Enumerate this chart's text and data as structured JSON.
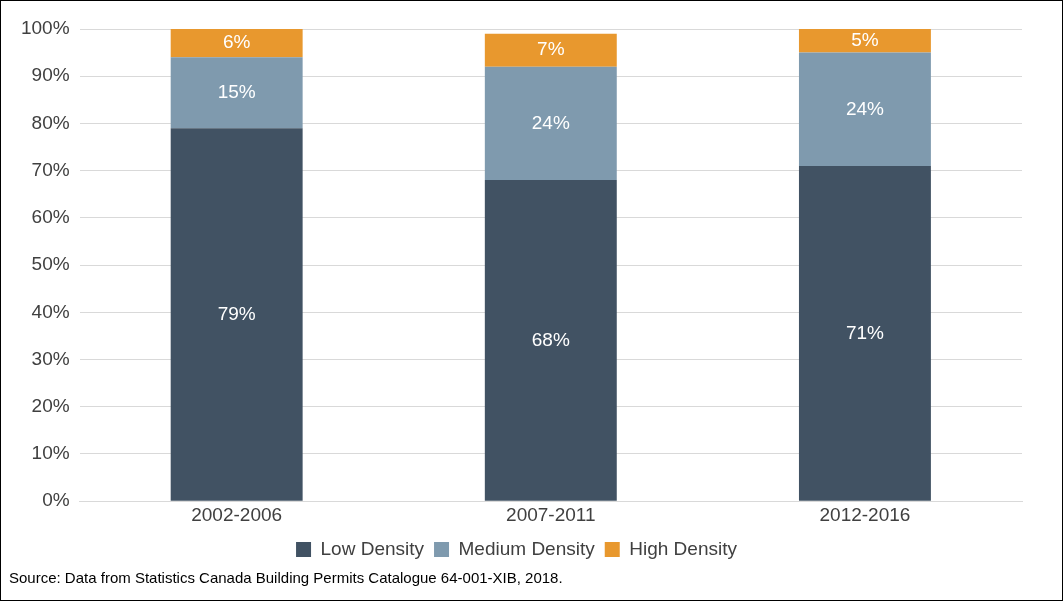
{
  "chart_data": {
    "type": "bar",
    "stacked": true,
    "categories": [
      "2002-2006",
      "2007-2011",
      "2012-2016"
    ],
    "series": [
      {
        "name": "Low Density",
        "color": "#415263",
        "values": [
          79,
          68,
          71
        ],
        "value_labels": [
          "79%",
          "68%",
          "71%"
        ]
      },
      {
        "name": "Medium Density",
        "color": "#7f9aae",
        "values": [
          15,
          24,
          24
        ],
        "value_labels": [
          "15%",
          "24%",
          "24%"
        ]
      },
      {
        "name": "High Density",
        "color": "#e8982e",
        "values": [
          6,
          7,
          5
        ],
        "value_labels": [
          "6%",
          "7%",
          "5%"
        ]
      }
    ],
    "ylim": [
      0,
      100
    ],
    "yticks": [
      {
        "value": 0,
        "label": "0%"
      },
      {
        "value": 10,
        "label": "10%"
      },
      {
        "value": 20,
        "label": "20%"
      },
      {
        "value": 30,
        "label": "30%"
      },
      {
        "value": 40,
        "label": "40%"
      },
      {
        "value": 50,
        "label": "50%"
      },
      {
        "value": 60,
        "label": "60%"
      },
      {
        "value": 70,
        "label": "70%"
      },
      {
        "value": 80,
        "label": "80%"
      },
      {
        "value": 90,
        "label": "90%"
      },
      {
        "value": 100,
        "label": "100%"
      }
    ],
    "grid": "y",
    "legend": "bottom",
    "annotations": [
      "Source:  Data from Statistics Canada Building Permits Catalogue 64-001-XIB, 2018."
    ]
  }
}
